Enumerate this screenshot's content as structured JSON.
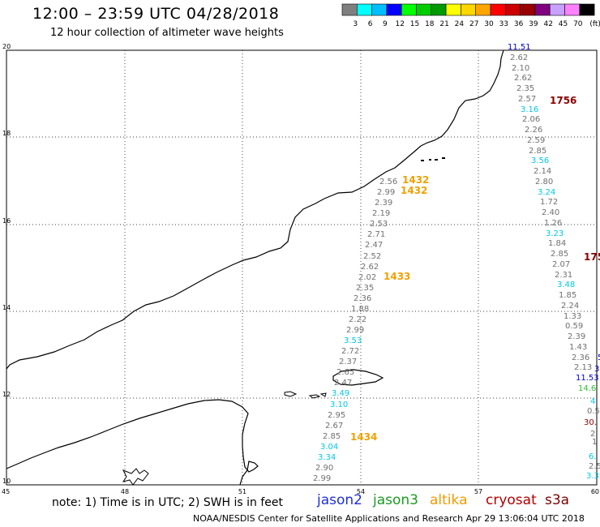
{
  "title": "12:00 – 23:59 UTC 04/28/2018",
  "subtitle": "12 hour collection of altimeter wave heights",
  "colorbar": {
    "unit": "(ft)",
    "bins": [
      {
        "label": "3",
        "color": "#7f7f7f"
      },
      {
        "label": "6",
        "color": "#00ffff"
      },
      {
        "label": "9",
        "color": "#00bfff"
      },
      {
        "label": "12",
        "color": "#0000ff"
      },
      {
        "label": "15",
        "color": "#00ff00"
      },
      {
        "label": "18",
        "color": "#00cc00"
      },
      {
        "label": "21",
        "color": "#009900"
      },
      {
        "label": "24",
        "color": "#ffff00"
      },
      {
        "label": "27",
        "color": "#ffd700"
      },
      {
        "label": "30",
        "color": "#ffa500"
      },
      {
        "label": "33",
        "color": "#ff0000"
      },
      {
        "label": "36",
        "color": "#cc0000"
      },
      {
        "label": "39",
        "color": "#990000"
      },
      {
        "label": "42",
        "color": "#800080"
      },
      {
        "label": "45",
        "color": "#c8a0ff"
      },
      {
        "label": "70",
        "color": "#ff80ff"
      },
      {
        "label": "",
        "color": "#000000"
      }
    ]
  },
  "axes": {
    "x_ticks": [
      "45",
      "48",
      "51",
      "54",
      "57",
      "60"
    ],
    "y_ticks": [
      "20",
      "18",
      "16",
      "14",
      "12",
      "10"
    ]
  },
  "colors": {
    "gray": "#707070",
    "cyan": "#00c8e6",
    "blue": "#0000d0",
    "orange": "#f0a000",
    "darkred": "#8b0000",
    "green": "#30c030"
  },
  "tracks": {
    "track_a": [
      {
        "t": "2.56",
        "c": "gray"
      },
      {
        "t": "2.99",
        "c": "gray"
      },
      {
        "t": "2.39",
        "c": "gray"
      },
      {
        "t": "2.19",
        "c": "gray"
      },
      {
        "t": "2.53",
        "c": "gray"
      },
      {
        "t": "2.71",
        "c": "gray"
      },
      {
        "t": "2.47",
        "c": "gray"
      },
      {
        "t": "2.52",
        "c": "gray"
      },
      {
        "t": "2.62",
        "c": "gray"
      },
      {
        "t": "2.02",
        "c": "gray"
      },
      {
        "t": "2.35",
        "c": "gray"
      },
      {
        "t": "2.36",
        "c": "gray"
      },
      {
        "t": "1.88",
        "c": "gray"
      },
      {
        "t": "2.22",
        "c": "gray"
      },
      {
        "t": "2.99",
        "c": "gray"
      },
      {
        "t": "3.53",
        "c": "cyan"
      },
      {
        "t": "2.72",
        "c": "gray"
      },
      {
        "t": "2.37",
        "c": "gray"
      },
      {
        "t": "2.65",
        "c": "gray"
      },
      {
        "t": "2.47",
        "c": "gray"
      },
      {
        "t": "3.49",
        "c": "cyan"
      },
      {
        "t": "3.10",
        "c": "cyan"
      },
      {
        "t": "2.95",
        "c": "gray"
      },
      {
        "t": "2.67",
        "c": "gray"
      },
      {
        "t": "2.85",
        "c": "gray"
      },
      {
        "t": "3.04",
        "c": "cyan"
      },
      {
        "t": "3.34",
        "c": "cyan"
      },
      {
        "t": "2.90",
        "c": "gray"
      },
      {
        "t": "2.99",
        "c": "gray"
      }
    ],
    "track_b": [
      {
        "t": "11.51",
        "c": "blue"
      },
      {
        "t": "2.62",
        "c": "gray"
      },
      {
        "t": "2.10",
        "c": "gray"
      },
      {
        "t": "2.62",
        "c": "gray"
      },
      {
        "t": "2.35",
        "c": "gray"
      },
      {
        "t": "2.57",
        "c": "gray"
      },
      {
        "t": "3.16",
        "c": "cyan"
      },
      {
        "t": "2.06",
        "c": "gray"
      },
      {
        "t": "2.26",
        "c": "gray"
      },
      {
        "t": "2.59",
        "c": "gray"
      },
      {
        "t": "2.85",
        "c": "gray"
      },
      {
        "t": "3.56",
        "c": "cyan"
      },
      {
        "t": "2.14",
        "c": "gray"
      },
      {
        "t": "2.80",
        "c": "gray"
      },
      {
        "t": "3.24",
        "c": "cyan"
      },
      {
        "t": "1.72",
        "c": "gray"
      },
      {
        "t": "2.40",
        "c": "gray"
      },
      {
        "t": "1.26",
        "c": "gray"
      },
      {
        "t": "3.23",
        "c": "cyan"
      },
      {
        "t": "1.84",
        "c": "gray"
      },
      {
        "t": "2.85",
        "c": "gray"
      },
      {
        "t": "2.07",
        "c": "gray"
      },
      {
        "t": "2.31",
        "c": "gray"
      },
      {
        "t": "3.48",
        "c": "cyan"
      },
      {
        "t": "1.85",
        "c": "gray"
      },
      {
        "t": "2.24",
        "c": "gray"
      },
      {
        "t": "1.33",
        "c": "gray"
      },
      {
        "t": "0.59",
        "c": "gray"
      },
      {
        "t": "2.39",
        "c": "gray"
      },
      {
        "t": "1.43",
        "c": "gray"
      },
      {
        "t": "2.36",
        "c": "gray"
      },
      {
        "t": "2.13",
        "c": "gray"
      },
      {
        "t": "11.53",
        "c": "blue"
      },
      {
        "t": "14.6",
        "c": "green"
      }
    ],
    "edge": [
      {
        "t": "5",
        "c": "blue"
      },
      {
        "t": "3",
        "c": "blue"
      },
      {
        "t": "4",
        "c": "cyan"
      },
      {
        "t": "0.5",
        "c": "gray"
      },
      {
        "t": "30.",
        "c": "darkred"
      },
      {
        "t": "2",
        "c": "gray"
      },
      {
        "t": "1",
        "c": "gray"
      },
      {
        "t": "6.",
        "c": "cyan"
      },
      {
        "t": "2.5",
        "c": "gray"
      },
      {
        "t": "3.3",
        "c": "cyan"
      }
    ]
  },
  "time_labels": [
    {
      "t": "1432",
      "c": "orange"
    },
    {
      "t": "1432",
      "c": "orange"
    },
    {
      "t": "1433",
      "c": "orange"
    },
    {
      "t": "1434",
      "c": "orange"
    },
    {
      "t": "1756",
      "c": "darkred"
    },
    {
      "t": "175",
      "c": "darkred"
    }
  ],
  "legend": {
    "note": "note: 1) Time is in UTC; 2) SWH is in feet",
    "satellites": [
      "jason2",
      "jason3",
      "altika",
      "cryosat",
      "s3a"
    ]
  },
  "footer": "NOAA/NESDIS Center for Satellite Applications and Research   Apr 29 13:06:04 UTC 2018"
}
